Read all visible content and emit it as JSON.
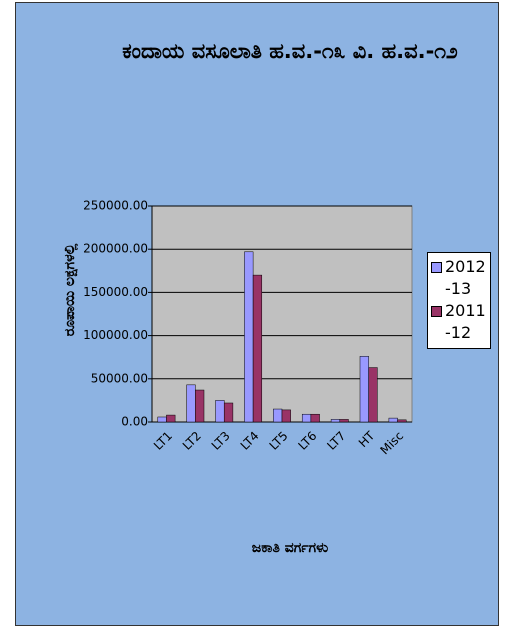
{
  "chart_data": {
    "type": "bar",
    "title": "ಕಂದಾಯ ವಸೂಲಾತಿ ಹ.ವ.-೧೩ ವಿ. ಹ.ವ.-೧೨",
    "x_label": "ಜಕಾತಿ ವರ್ಗಗಳು",
    "y_label": "ರೂಪಾಯಿ ಲಕ್ಷಗಳಲ್ಲಿ",
    "categories": [
      "LT1",
      "LT2",
      "LT3",
      "LT4",
      "LT5",
      "LT6",
      "LT7",
      "HT",
      "Misc"
    ],
    "series": [
      {
        "name": "2012-13",
        "color": "#9999ff",
        "values": [
          5800,
          43000,
          25000,
          197000,
          15000,
          9000,
          3000,
          76000,
          4500
        ]
      },
      {
        "name": "2011-12",
        "color": "#993366",
        "values": [
          8000,
          37000,
          22000,
          170000,
          14000,
          9000,
          3000,
          63000,
          2500
        ]
      }
    ],
    "ylim": [
      0,
      250000
    ],
    "yticks": [
      {
        "value": 0,
        "label": "0.00"
      },
      {
        "value": 50000,
        "label": "50000.00"
      },
      {
        "value": 100000,
        "label": "100000.00"
      },
      {
        "value": 150000,
        "label": "150000.00"
      },
      {
        "value": 200000,
        "label": "200000.00"
      },
      {
        "value": 250000,
        "label": "250000.00"
      }
    ],
    "grid": true,
    "legend": "right"
  }
}
